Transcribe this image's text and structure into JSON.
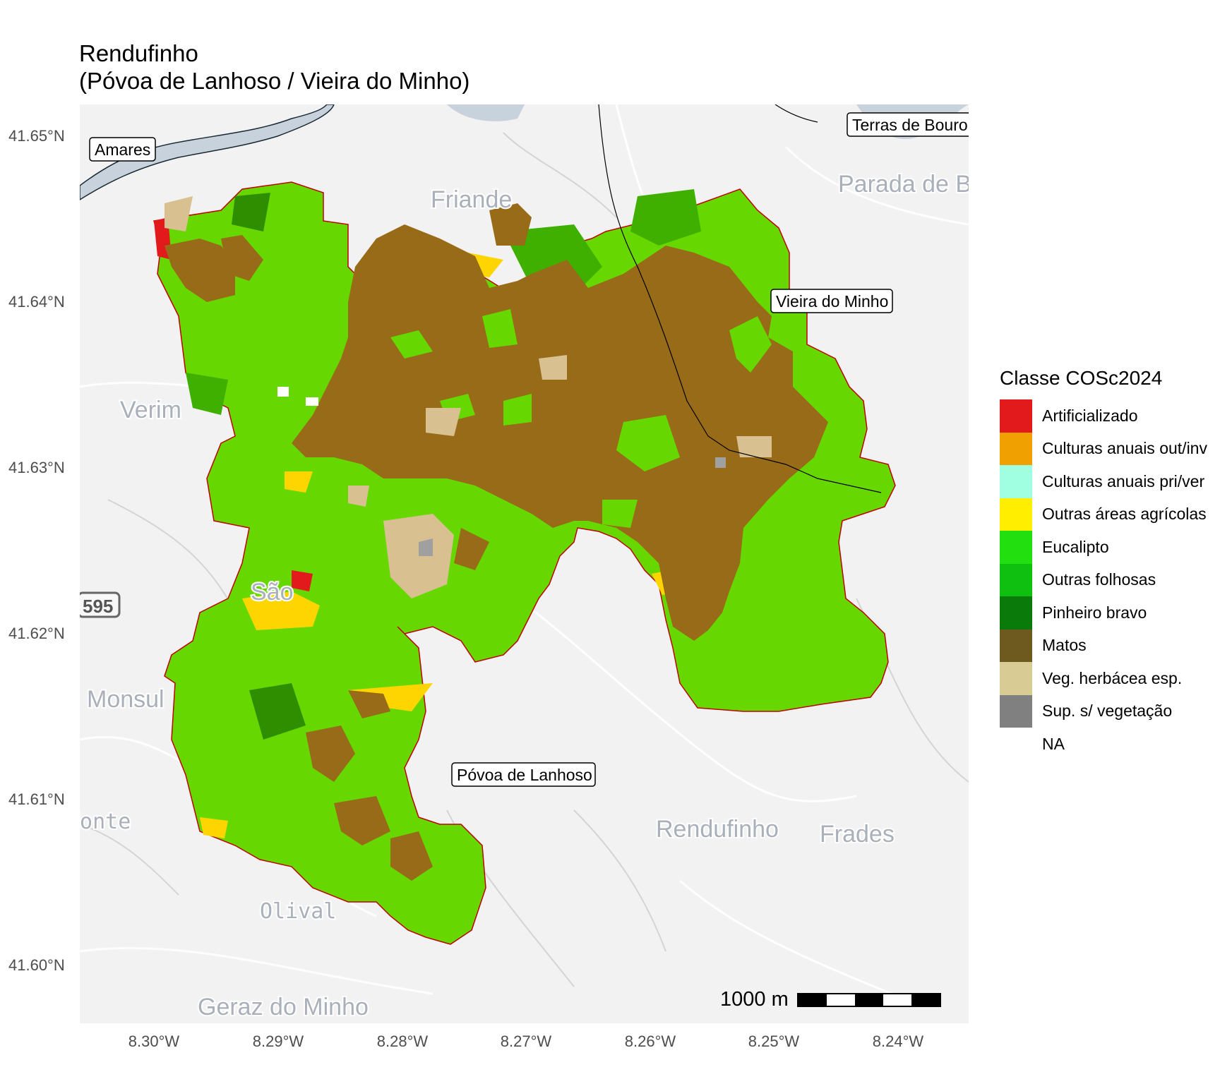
{
  "title": {
    "line1": "Rendufinho",
    "line2": "(Póvoa de Lanhoso / Vieira do Minho)"
  },
  "map": {
    "basemap_places": [
      {
        "id": "friande",
        "label": "Friande"
      },
      {
        "id": "verim",
        "label": "Verim"
      },
      {
        "id": "monsul",
        "label": "Monsul"
      },
      {
        "id": "sao",
        "label": "São"
      },
      {
        "id": "monte",
        "label": "Monte"
      },
      {
        "id": "olival",
        "label": "Olival"
      },
      {
        "id": "geraz",
        "label": "Geraz do Minho"
      },
      {
        "id": "rendufinho",
        "label": "Rendufinho"
      },
      {
        "id": "frades",
        "label": "Frades"
      },
      {
        "id": "parada",
        "label": "Parada de B"
      },
      {
        "id": "road595",
        "label": "595"
      }
    ],
    "boxed_labels": [
      {
        "id": "amares",
        "label": "Amares"
      },
      {
        "id": "terras-bouro",
        "label": "Terras de Bouro"
      },
      {
        "id": "vieira-minho",
        "label": "Vieira do Minho"
      },
      {
        "id": "povoa-lanhoso",
        "label": "Póvoa de Lanhoso"
      }
    ],
    "y_axis_ticks": [
      "41.65°N",
      "41.64°N",
      "41.63°N",
      "41.62°N",
      "41.61°N",
      "41.60°N"
    ],
    "x_axis_ticks": [
      "8.30°W",
      "8.29°W",
      "8.28°W",
      "8.27°W",
      "8.26°W",
      "8.25°W",
      "8.24°W"
    ],
    "scale_bar": {
      "label": "1000 m"
    }
  },
  "legend": {
    "title": "Classe COSc2024",
    "items": [
      {
        "label": "Artificializado",
        "color": "#e31a1c"
      },
      {
        "label": "Culturas anuais out/inv",
        "color": "#f0a000"
      },
      {
        "label": "Culturas anuais pri/ver",
        "color": "#a0ffe0"
      },
      {
        "label": "Outras áreas agrícolas",
        "color": "#ffee00"
      },
      {
        "label": "Eucalipto",
        "color": "#22e010"
      },
      {
        "label": "Outras folhosas",
        "color": "#10c010"
      },
      {
        "label": "Pinheiro bravo",
        "color": "#0a7a0a"
      },
      {
        "label": "Matos",
        "color": "#6e5a1e"
      },
      {
        "label": "Veg. herbácea esp.",
        "color": "#d8cc94"
      },
      {
        "label": "Sup. s/ vegetação",
        "color": "#808080"
      },
      {
        "label": "NA",
        "color": "#ffffff"
      }
    ]
  }
}
